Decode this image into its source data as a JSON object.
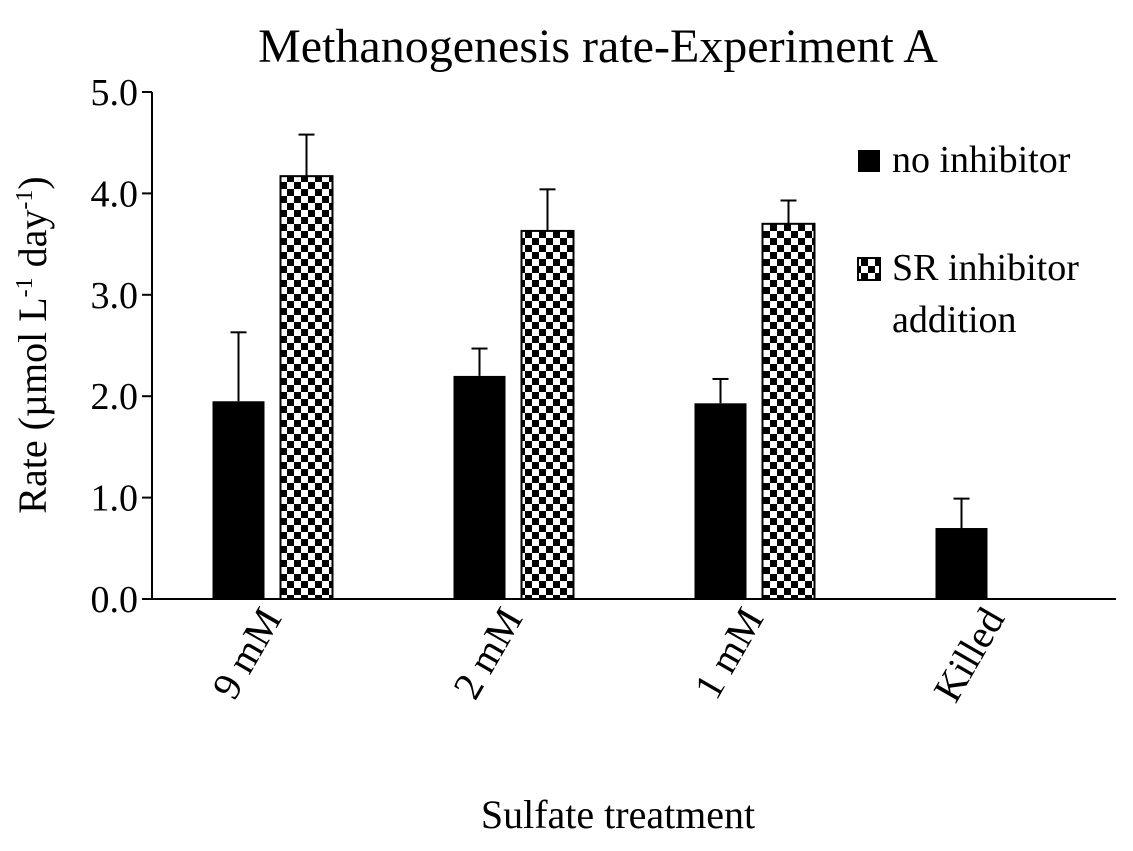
{
  "chart_data": {
    "type": "bar",
    "title": "Methanogenesis rate-Experiment A",
    "xlabel": "Sulfate treatment",
    "ylabel_main": "Rate (µmol L",
    "ylabel_sup1": "-1",
    "ylabel_mid": " day",
    "ylabel_sup2": "-1",
    "ylabel_end": ")",
    "ylim": [
      0,
      5
    ],
    "yticks": [
      "0.0",
      "1.0",
      "2.0",
      "3.0",
      "4.0",
      "5.0"
    ],
    "categories": [
      "9 mM",
      "2 mM",
      "1 mM",
      "Killed"
    ],
    "series": [
      {
        "name": "no inhibitor",
        "fill": "solid",
        "color": "#000000",
        "values": [
          1.95,
          2.2,
          1.93,
          0.7
        ],
        "errors": [
          0.68,
          0.27,
          0.24,
          0.29
        ]
      },
      {
        "name": "SR inhibitor addition",
        "legend_lines": [
          "SR inhibitor",
          "addition"
        ],
        "fill": "checker",
        "color": "#000000",
        "values": [
          4.17,
          3.63,
          3.7,
          null
        ],
        "errors": [
          0.41,
          0.41,
          0.23,
          null
        ]
      }
    ],
    "grid": false,
    "legend": "top-right"
  }
}
